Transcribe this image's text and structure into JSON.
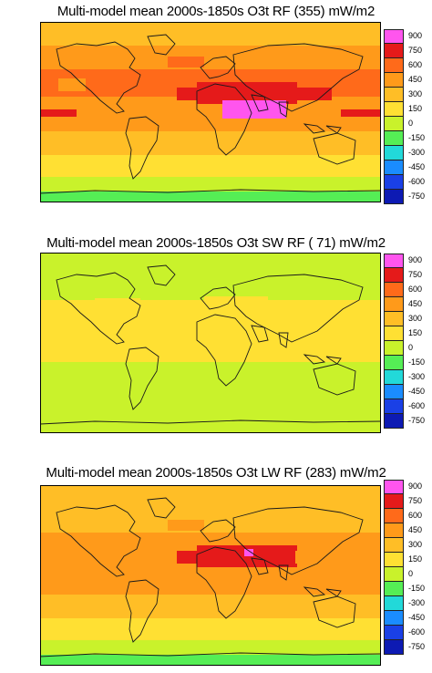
{
  "colorbar": {
    "ticks": [
      "900",
      "750",
      "600",
      "450",
      "300",
      "150",
      "0",
      "-150",
      "-300",
      "-450",
      "-600",
      "-750"
    ],
    "colors": [
      "#ff55ee",
      "#e51a1a",
      "#ff6a1a",
      "#ff9a1a",
      "#ffbe26",
      "#ffe033",
      "#c9f22b",
      "#55ee55",
      "#22d9d9",
      "#1a8cff",
      "#1a40e6",
      "#0d1ab3"
    ]
  },
  "panels": [
    {
      "title": "Multi-model mean  2000s-1850s O3t RF (355) mW/m2",
      "band_colors": [
        "#ffbe26",
        "#ff9a1a",
        "#ff6a1a",
        "#ff9a1a",
        "#ffbe26",
        "#ffe033",
        "#c9f22b",
        "#55ee55"
      ],
      "hotspot": true,
      "magenta": true
    },
    {
      "title": "Multi-model mean  2000s-1850s O3t SW RF ( 71) mW/m2",
      "band_colors": [
        "#c9f22b",
        "#c9f22b",
        "#ffe033",
        "#ffe033",
        "#c9f22b",
        "#c9f22b",
        "#c9f22b",
        "#c9f22b"
      ],
      "hotspot": false,
      "magenta": false
    },
    {
      "title": "Multi-model mean  2000s-1850s O3t LW RF (283) mW/m2",
      "band_colors": [
        "#ffbe26",
        "#ffbe26",
        "#ff9a1a",
        "#ff9a1a",
        "#ffbe26",
        "#ffe033",
        "#c9f22b",
        "#55ee55"
      ],
      "hotspot": true,
      "magenta": true
    }
  ]
}
